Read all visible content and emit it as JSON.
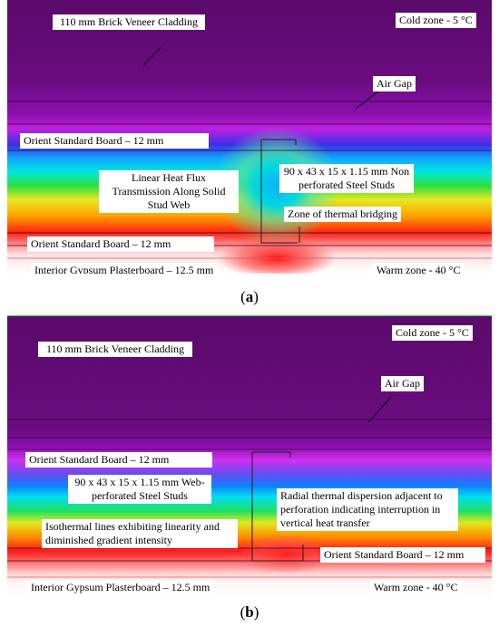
{
  "panel_a": {
    "labels": {
      "brick": "110 mm Brick Veneer Cladding",
      "cold": "Cold zone - 5 °C",
      "airgap": "Air Gap",
      "osb_top": "Orient Standard Board – 12 mm",
      "linear": "Linear Heat Flux Transmission Along Solid Stud Web",
      "studs": "90 x 43 x 15 x 1.15 mm Non perforated Steel Studs",
      "bridging": "Zone of thermal bridging",
      "osb_bottom": "Orient Standard Board – 12 mm",
      "gypsum": "Interior Gypsum Plasterboard – 12.5 mm",
      "warm": "Warm zone - 40 °C"
    },
    "caption_letter": "a"
  },
  "panel_b": {
    "labels": {
      "cold": "Cold zone - 5 °C",
      "brick": "110 mm Brick Veneer Cladding",
      "airgap": "Air Gap",
      "osb_top": "Orient Standard Board – 12 mm",
      "studs": "90 x 43 x 15 x 1.15 mm Web-perforated Steel Studs",
      "radial": "Radial thermal dispersion adjacent to perforation indicating interruption in vertical heat transfer",
      "isotherm": "Isothermal lines exhibiting linearity and diminished gradient intensity",
      "osb_bottom": "Orient Standard Board – 12 mm",
      "gypsum": "Interior Gypsum Plasterboard – 12.5 mm",
      "warm": "Warm zone - 40 °C"
    },
    "caption_letter": "b"
  }
}
